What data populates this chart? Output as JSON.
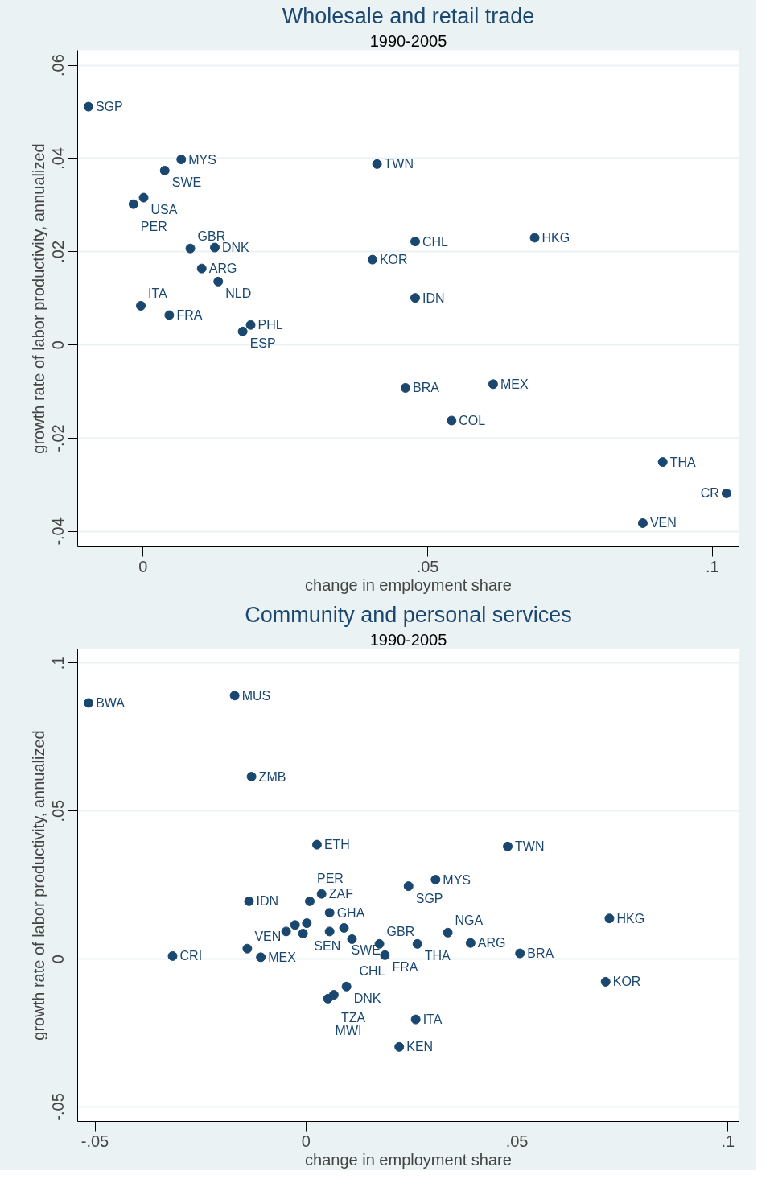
{
  "chart_data": [
    {
      "type": "scatter",
      "title": "Wholesale and retail trade",
      "subtitle": "1990-2005",
      "xlabel": "change in employment share",
      "ylabel": "growth rate of labor productivity, annualized",
      "xlim": [
        -0.0115,
        0.1047
      ],
      "ylim": [
        -0.0433,
        0.0632
      ],
      "xticks": [
        0,
        {
          "value": 0.05,
          "label": ".05"
        },
        {
          "value": 0.1,
          "label": ".1"
        }
      ],
      "yticks": [
        {
          "value": -0.04,
          "label": "-.04"
        },
        {
          "value": -0.02,
          "label": "-.02"
        },
        0,
        {
          "value": 0.02,
          "label": ".02"
        },
        {
          "value": 0.04,
          "label": ".04"
        },
        {
          "value": 0.06,
          "label": ".06"
        }
      ],
      "grid": "y",
      "marker": "circle",
      "series": [
        {
          "color": "#1a476f",
          "x": [
            -0.0096,
            0.0067,
            0.0038,
            0.0001,
            -0.0017,
            0.0083,
            0.0126,
            0.0103,
            0.0132,
            -0.0004,
            0.0046,
            0.0189,
            0.0175,
            0.0411,
            0.0478,
            0.0688,
            0.0403,
            0.0478,
            0.0461,
            0.0615,
            0.0542,
            0.0913,
            0.1025,
            0.0878
          ],
          "values": [
            0.0511,
            0.0398,
            0.0374,
            0.0316,
            0.0302,
            0.0207,
            0.0209,
            0.0164,
            0.0136,
            0.0084,
            0.0064,
            0.0043,
            0.0029,
            0.0388,
            0.0222,
            0.023,
            0.0183,
            0.0101,
            -0.0092,
            -0.0084,
            -0.0162,
            -0.0251,
            -0.0318,
            -0.0382
          ]
        }
      ],
      "annotations": [
        {
          "text": "SGP",
          "x": -0.0096,
          "y": 0.0511
        },
        {
          "text": "MYS",
          "x": 0.0067,
          "y": 0.0398
        },
        {
          "text": "SWE",
          "x": 0.0038,
          "y": 0.0374
        },
        {
          "text": "USA",
          "x": 0.0001,
          "y": 0.0316
        },
        {
          "text": "PER",
          "x": -0.0017,
          "y": 0.0302
        },
        {
          "text": "GBR",
          "x": 0.0083,
          "y": 0.0207
        },
        {
          "text": "DNK",
          "x": 0.0126,
          "y": 0.0209
        },
        {
          "text": "ARG",
          "x": 0.0103,
          "y": 0.0164
        },
        {
          "text": "NLD",
          "x": 0.0132,
          "y": 0.0136
        },
        {
          "text": "ITA",
          "x": -0.0004,
          "y": 0.0084
        },
        {
          "text": "FRA",
          "x": 0.0046,
          "y": 0.0064
        },
        {
          "text": "PHL",
          "x": 0.0189,
          "y": 0.0043
        },
        {
          "text": "ESP",
          "x": 0.0175,
          "y": 0.0029
        },
        {
          "text": "TWN",
          "x": 0.0411,
          "y": 0.0388
        },
        {
          "text": "CHL",
          "x": 0.0478,
          "y": 0.0222
        },
        {
          "text": "HKG",
          "x": 0.0688,
          "y": 0.023
        },
        {
          "text": "KOR",
          "x": 0.0403,
          "y": 0.0183
        },
        {
          "text": "IDN",
          "x": 0.0478,
          "y": 0.0101
        },
        {
          "text": "BRA",
          "x": 0.0461,
          "y": -0.0092
        },
        {
          "text": "MEX",
          "x": 0.0615,
          "y": -0.0084
        },
        {
          "text": "COL",
          "x": 0.0542,
          "y": -0.0162
        },
        {
          "text": "THA",
          "x": 0.0913,
          "y": -0.0251
        },
        {
          "text": "CR",
          "x": 0.1025,
          "y": -0.0318
        },
        {
          "text": "VEN",
          "x": 0.0878,
          "y": -0.0382
        }
      ]
    },
    {
      "type": "scatter",
      "title": "Community and personal services",
      "subtitle": "1990-2005",
      "xlabel": "change in employment share",
      "ylabel": "growth rate of labor productivity, annualized",
      "xlim": [
        -0.0541,
        0.1026
      ],
      "ylim": [
        -0.0549,
        0.1047
      ],
      "xticks": [
        {
          "value": -0.05,
          "label": "-.05"
        },
        0,
        {
          "value": 0.05,
          "label": ".05"
        },
        {
          "value": 0.1,
          "label": ".1"
        }
      ],
      "yticks": [
        {
          "value": -0.05,
          "label": "-.05"
        },
        0,
        {
          "value": 0.05,
          "label": ".05"
        },
        {
          "value": 0.1,
          "label": ".1"
        }
      ],
      "grid": "y",
      "marker": "circle",
      "series": [
        {
          "color": "#1a476f",
          "x": [
            -0.0515,
            -0.0169,
            -0.0129,
            0.0026,
            0.0478,
            0.0307,
            0.0243,
            0.0719,
            0.0336,
            0.039,
            0.0264,
            0.0507,
            0.071,
            0.026,
            0.0221,
            -0.0135,
            0.0037,
            0.0009,
            0.0056,
            -0.0026,
            0.0002,
            -0.0047,
            -0.0007,
            0.0056,
            0.009,
            0.0109,
            0.0174,
            0.0187,
            -0.0139,
            -0.0107,
            0.0096,
            0.0066,
            0.0052,
            -0.0316
          ],
          "values": [
            0.0865,
            0.089,
            0.0616,
            0.0386,
            0.038,
            0.0268,
            0.0246,
            0.0137,
            0.0089,
            0.0054,
            0.0051,
            0.0019,
            -0.0077,
            -0.0204,
            -0.0297,
            0.0195,
            0.022,
            0.0195,
            0.0156,
            0.0115,
            0.0121,
            0.0093,
            0.0086,
            0.0093,
            0.0105,
            0.0067,
            0.0051,
            0.0013,
            0.0035,
            0.0006,
            -0.0093,
            -0.0121,
            -0.0134,
            0.001
          ]
        }
      ],
      "annotations": [
        {
          "text": "BWA",
          "x": -0.0515,
          "y": 0.0865
        },
        {
          "text": "MUS",
          "x": -0.0169,
          "y": 0.089
        },
        {
          "text": "ZMB",
          "x": -0.0129,
          "y": 0.0616
        },
        {
          "text": "ETH",
          "x": 0.0026,
          "y": 0.0386
        },
        {
          "text": "TWN",
          "x": 0.0478,
          "y": 0.038
        },
        {
          "text": "MYS",
          "x": 0.0307,
          "y": 0.0268
        },
        {
          "text": "SGP",
          "x": 0.0243,
          "y": 0.0246
        },
        {
          "text": "HKG",
          "x": 0.0719,
          "y": 0.0137
        },
        {
          "text": "NGA",
          "x": 0.0336,
          "y": 0.0089
        },
        {
          "text": "ARG",
          "x": 0.039,
          "y": 0.0054
        },
        {
          "text": "THA",
          "x": 0.0264,
          "y": 0.0051
        },
        {
          "text": "BRA",
          "x": 0.0507,
          "y": 0.0019
        },
        {
          "text": "KOR",
          "x": 0.071,
          "y": -0.0077
        },
        {
          "text": "ITA",
          "x": 0.026,
          "y": -0.0204
        },
        {
          "text": "KEN",
          "x": 0.0221,
          "y": -0.0297
        },
        {
          "text": "IDN",
          "x": -0.0135,
          "y": 0.0195
        },
        {
          "text": "ZAF",
          "x": 0.0037,
          "y": 0.022
        },
        {
          "text": "PER",
          "x": 0.0009,
          "y": 0.0195
        },
        {
          "text": "GHA",
          "x": 0.0056,
          "y": 0.0156
        },
        {
          "text": "SEN",
          "x": 0.0002,
          "y": 0.0121
        },
        {
          "text": "SWE",
          "x": 0.009,
          "y": 0.0105
        },
        {
          "text": "CHL",
          "x": 0.0109,
          "y": 0.0067
        },
        {
          "text": "GBR",
          "x": 0.0174,
          "y": 0.0051
        },
        {
          "text": "FRA",
          "x": 0.0187,
          "y": 0.0013
        },
        {
          "text": "VEN",
          "x": -0.0139,
          "y": 0.0035
        },
        {
          "text": "MEX",
          "x": -0.0107,
          "y": 0.0006
        },
        {
          "text": "DNK",
          "x": 0.0096,
          "y": -0.0093
        },
        {
          "text": "TZA",
          "x": 0.0066,
          "y": -0.0121
        },
        {
          "text": "MWI",
          "x": 0.0052,
          "y": -0.0134
        },
        {
          "text": "CRI",
          "x": -0.0316,
          "y": 0.001
        }
      ]
    }
  ]
}
